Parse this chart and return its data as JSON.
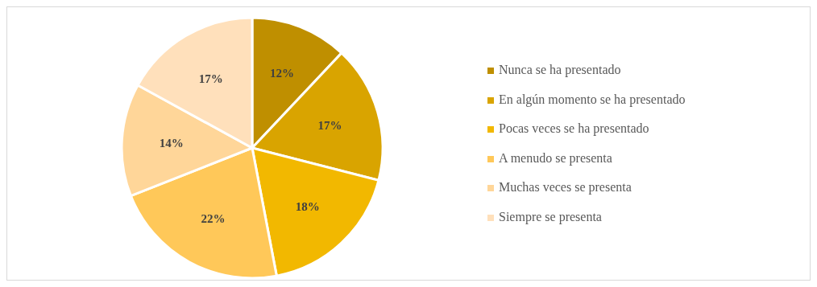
{
  "chart_data": {
    "type": "pie",
    "categories": [
      "Nunca se ha presentado",
      "En algún momento se ha presentado",
      "Pocas veces se ha presentado",
      "A menudo se presenta",
      "Muchas veces se presenta",
      "Siempre se presenta"
    ],
    "values": [
      12,
      17,
      18,
      22,
      14,
      17
    ],
    "value_labels": [
      "12%",
      "17%",
      "18%",
      "22%",
      "14%",
      "17%"
    ],
    "colors": [
      "#bf8f00",
      "#d9a400",
      "#f2b800",
      "#ffc859",
      "#ffd699",
      "#ffe0bb"
    ],
    "legend": "right"
  }
}
